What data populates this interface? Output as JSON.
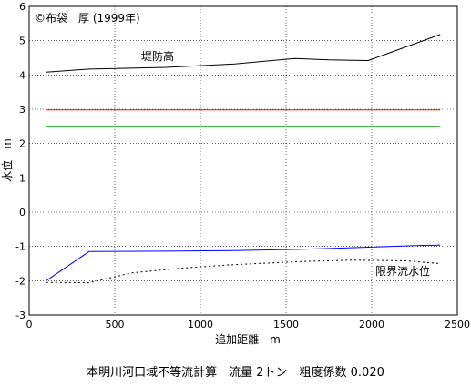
{
  "chart_data": {
    "type": "line",
    "copyright": "©布袋　厚 (1999年)",
    "xlabel": "追加距離　m",
    "ylabel": "水位　m",
    "caption": "本明川河口域不等流計算　流量 2トン　粗度係数 0.020",
    "xlim": [
      0,
      2500
    ],
    "ylim": [
      -3,
      6
    ],
    "xticks": [
      "0",
      "500",
      "1000",
      "1500",
      "2000",
      "2500"
    ],
    "yticks": [
      "-3",
      "-2",
      "-1",
      "0",
      "1",
      "2",
      "3",
      "4",
      "5",
      "6"
    ],
    "grid": true,
    "series": [
      {
        "name": "堤防高",
        "color": "#000000",
        "style": "solid",
        "x": [
          100,
          350,
          800,
          1200,
          1550,
          1750,
          1980,
          2400
        ],
        "y": [
          4.08,
          4.17,
          4.22,
          4.32,
          4.48,
          4.44,
          4.42,
          5.18
        ]
      },
      {
        "name": "",
        "color": "#ff0000",
        "style": "solid",
        "x": [
          100,
          2400
        ],
        "y": [
          2.98,
          2.98
        ]
      },
      {
        "name": "",
        "color": "#00aa00",
        "style": "solid",
        "x": [
          100,
          2400
        ],
        "y": [
          2.5,
          2.5
        ]
      },
      {
        "name": "",
        "color": "#0000ff",
        "style": "solid",
        "x": [
          100,
          350,
          800,
          1200,
          1600,
          2000,
          2300,
          2400
        ],
        "y": [
          -2.0,
          -1.15,
          -1.14,
          -1.12,
          -1.08,
          -1.02,
          -0.97,
          -0.96
        ]
      },
      {
        "name": "限界流水位",
        "color": "#000000",
        "style": "dotted",
        "x": [
          100,
          350,
          600,
          900,
          1200,
          1600,
          1900,
          2200,
          2400
        ],
        "y": [
          -2.05,
          -2.06,
          -1.77,
          -1.63,
          -1.53,
          -1.44,
          -1.4,
          -1.42,
          -1.5
        ]
      }
    ]
  }
}
